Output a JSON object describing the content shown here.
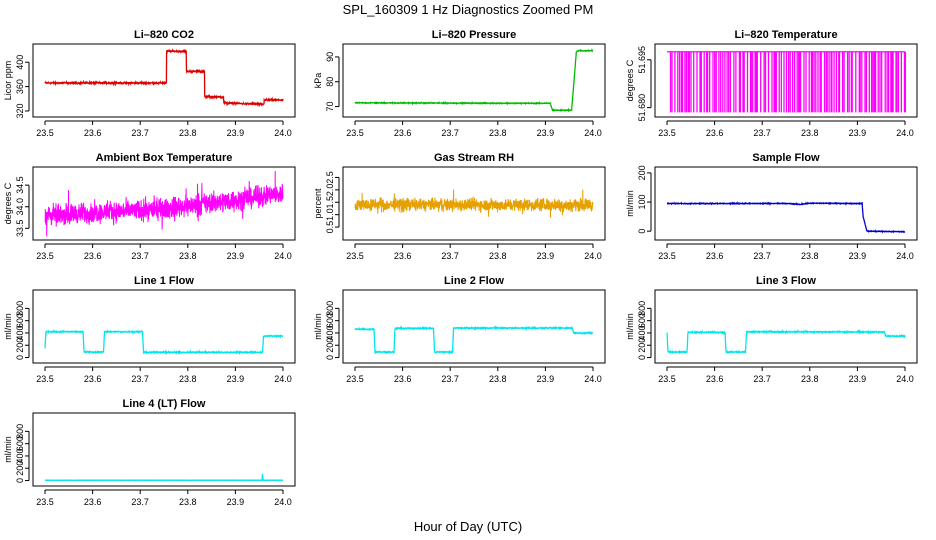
{
  "figure": {
    "title": "SPL_160309  1 Hz Diagnostics Zoomed PM",
    "xlabel": "Hour of Day (UTC)"
  },
  "chart_data": [
    {
      "type": "line",
      "title": "Li–820 CO2",
      "ylabel": "Licor ppm",
      "color": "#dd0000",
      "xlim": [
        23.5,
        24.0
      ],
      "ylim": [
        315,
        425
      ],
      "xticks": [
        "23.5",
        "23.6",
        "23.7",
        "23.8",
        "23.9",
        "24.0"
      ],
      "yticks": [
        {
          "v": 320,
          "t": "320"
        },
        {
          "v": 360,
          "t": "360"
        },
        {
          "v": 400,
          "t": "400"
        }
      ],
      "x": [
        23.5,
        23.755,
        23.755,
        23.797,
        23.797,
        23.835,
        23.835,
        23.875,
        23.875,
        23.96,
        23.96,
        24.0
      ],
      "y": [
        366,
        366,
        418,
        418,
        385,
        385,
        343,
        343,
        333,
        331,
        338,
        338
      ],
      "noise": 1.2
    },
    {
      "type": "line",
      "title": "Li–820 Pressure",
      "ylabel": "kPa",
      "color": "#00bb00",
      "xlim": [
        23.5,
        24.0
      ],
      "ylim": [
        67,
        94
      ],
      "xticks": [
        "23.5",
        "23.6",
        "23.7",
        "23.8",
        "23.9",
        "24.0"
      ],
      "yticks": [
        {
          "v": 70,
          "t": "70"
        },
        {
          "v": 80,
          "t": "80"
        },
        {
          "v": 90,
          "t": "90"
        }
      ],
      "x": [
        23.5,
        23.91,
        23.915,
        23.955,
        23.96,
        23.965,
        23.97,
        24.0
      ],
      "y": [
        71.5,
        71.3,
        68.5,
        68.5,
        80,
        92,
        92.5,
        92.5
      ],
      "noise": 0.15
    },
    {
      "type": "binary",
      "title": "Li–820 Temperature",
      "ylabel": "degrees C",
      "color": "#ff00ff",
      "xlim": [
        23.5,
        24.0
      ],
      "ylim": [
        51.678,
        51.699
      ],
      "xticks": [
        "23.5",
        "23.6",
        "23.7",
        "23.8",
        "23.9",
        "24.0"
      ],
      "yticks": [
        {
          "v": 51.68,
          "t": "51.680"
        },
        {
          "v": 51.695,
          "t": "51.695"
        }
      ],
      "levels": [
        51.6785,
        51.6975
      ]
    },
    {
      "type": "noise",
      "title": "Ambient Box Temperature",
      "ylabel": "degrees C",
      "color": "#ff00ff",
      "xlim": [
        23.5,
        24.0
      ],
      "ylim": [
        33.3,
        34.85
      ],
      "xticks": [
        "23.5",
        "23.6",
        "23.7",
        "23.8",
        "23.9",
        "24.0"
      ],
      "yticks": [
        {
          "v": 33.5,
          "t": "33.5"
        },
        {
          "v": 34.0,
          "t": "34.0"
        },
        {
          "v": 34.5,
          "t": "34.5"
        }
      ],
      "x": [
        23.5,
        23.75,
        24.0
      ],
      "y": [
        33.8,
        33.95,
        34.3
      ],
      "noise": 0.2
    },
    {
      "type": "noise",
      "title": "Gas Stream RH",
      "ylabel": "percent",
      "color": "#e6a000",
      "xlim": [
        23.5,
        24.0
      ],
      "ylim": [
        0.1,
        2.8
      ],
      "xticks": [
        "23.5",
        "23.6",
        "23.7",
        "23.8",
        "23.9",
        "24.0"
      ],
      "yticks": [
        {
          "v": 0.5,
          "t": "0.5"
        },
        {
          "v": 1.0,
          "t": "1.0"
        },
        {
          "v": 1.5,
          "t": "1.5"
        },
        {
          "v": 2.0,
          "t": "2.0"
        },
        {
          "v": 2.5,
          "t": "2.5"
        }
      ],
      "x": [
        23.5,
        24.0
      ],
      "y": [
        1.4,
        1.4
      ],
      "noise": 0.22
    },
    {
      "type": "line",
      "title": "Sample Flow",
      "ylabel": "ml/min",
      "color": "#0000cc",
      "xlim": [
        23.5,
        24.0
      ],
      "ylim": [
        -20,
        210
      ],
      "xticks": [
        "23.5",
        "23.6",
        "23.7",
        "23.8",
        "23.9",
        "24.0"
      ],
      "yticks": [
        {
          "v": 0,
          "t": "0"
        },
        {
          "v": 100,
          "t": "100"
        },
        {
          "v": 200,
          "t": "200"
        }
      ],
      "x": [
        23.5,
        23.75,
        23.78,
        23.8,
        23.91,
        23.912,
        23.92,
        24.0
      ],
      "y": [
        95,
        95,
        92,
        96,
        95,
        50,
        0,
        -2
      ],
      "noise": 1.2
    },
    {
      "type": "line",
      "title": "Line 1 Flow",
      "ylabel": "ml/min",
      "color": "#00e5ee",
      "xlim": [
        23.5,
        24.0
      ],
      "ylim": [
        -40,
        1050
      ],
      "xticks": [
        "23.5",
        "23.6",
        "23.7",
        "23.8",
        "23.9",
        "24.0"
      ],
      "yticks": [
        {
          "v": 0,
          "t": "0"
        },
        {
          "v": 200,
          "t": "200"
        },
        {
          "v": 400,
          "t": "400"
        },
        {
          "v": 600,
          "t": "600"
        },
        {
          "v": 800,
          "t": "800"
        }
      ],
      "x": [
        23.5,
        23.502,
        23.504,
        23.58,
        23.582,
        23.623,
        23.625,
        23.705,
        23.707,
        23.957,
        23.959,
        24.0
      ],
      "y": [
        150,
        420,
        420,
        420,
        90,
        90,
        420,
        420,
        85,
        85,
        350,
        350
      ],
      "noise": 8
    },
    {
      "type": "line",
      "title": "Line 2 Flow",
      "ylabel": "ml/min",
      "color": "#00e5ee",
      "xlim": [
        23.5,
        24.0
      ],
      "ylim": [
        -40,
        1050
      ],
      "xticks": [
        "23.5",
        "23.6",
        "23.7",
        "23.8",
        "23.9",
        "24.0"
      ],
      "yticks": [
        {
          "v": 0,
          "t": "0"
        },
        {
          "v": 200,
          "t": "200"
        },
        {
          "v": 400,
          "t": "400"
        },
        {
          "v": 600,
          "t": "600"
        },
        {
          "v": 800,
          "t": "800"
        }
      ],
      "x": [
        23.5,
        23.54,
        23.542,
        23.582,
        23.584,
        23.665,
        23.667,
        23.705,
        23.707,
        23.957,
        23.959,
        24.0
      ],
      "y": [
        460,
        460,
        90,
        90,
        475,
        475,
        90,
        90,
        480,
        480,
        400,
        400
      ],
      "noise": 8
    },
    {
      "type": "line",
      "title": "Line 3 Flow",
      "ylabel": "ml/min",
      "color": "#00e5ee",
      "xlim": [
        23.5,
        24.0
      ],
      "ylim": [
        -40,
        1050
      ],
      "xticks": [
        "23.5",
        "23.6",
        "23.7",
        "23.8",
        "23.9",
        "24.0"
      ],
      "yticks": [
        {
          "v": 0,
          "t": "0"
        },
        {
          "v": 200,
          "t": "200"
        },
        {
          "v": 400,
          "t": "400"
        },
        {
          "v": 600,
          "t": "600"
        },
        {
          "v": 800,
          "t": "800"
        }
      ],
      "x": [
        23.5,
        23.502,
        23.542,
        23.544,
        23.622,
        23.624,
        23.665,
        23.667,
        23.957,
        23.959,
        24.0
      ],
      "y": [
        400,
        90,
        90,
        410,
        410,
        90,
        90,
        420,
        415,
        350,
        350
      ],
      "noise": 8
    },
    {
      "type": "line",
      "title": "Line 4 (LT) Flow",
      "ylabel": "ml/min",
      "color": "#00e5ee",
      "xlim": [
        23.5,
        24.0
      ],
      "ylim": [
        -40,
        1050
      ],
      "xticks": [
        "23.5",
        "23.6",
        "23.7",
        "23.8",
        "23.9",
        "24.0"
      ],
      "yticks": [
        {
          "v": 0,
          "t": "0"
        },
        {
          "v": 200,
          "t": "200"
        },
        {
          "v": 400,
          "t": "400"
        },
        {
          "v": 600,
          "t": "600"
        },
        {
          "v": 800,
          "t": "800"
        }
      ],
      "x": [
        23.5,
        23.956,
        23.957,
        23.958,
        24.0
      ],
      "y": [
        5,
        5,
        140,
        5,
        5
      ],
      "noise": 1.5
    }
  ]
}
